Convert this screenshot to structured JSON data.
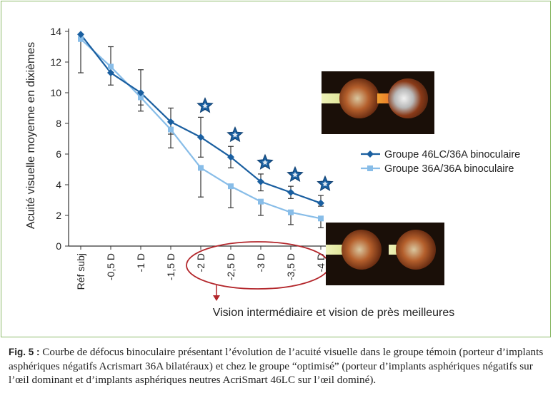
{
  "chart_data": {
    "type": "line",
    "ylabel": "Acuité visuelle moyenne en dixièmes",
    "xlabel": "",
    "ylim": [
      0,
      14
    ],
    "yticks": [
      0,
      2,
      4,
      6,
      8,
      10,
      12,
      14
    ],
    "categories": [
      "Réf subj",
      "-0,5 D",
      "-1 D",
      "-1,5 D",
      "-2 D",
      "-2,5 D",
      "-3 D",
      "-3,5 D",
      "-4 D"
    ],
    "grid": false,
    "legend_position": "right",
    "series": [
      {
        "name": "Groupe 46LC/36A binoculaire",
        "color": "#1a5fa0",
        "marker": "diamond",
        "values": [
          13.8,
          11.3,
          10.0,
          8.1,
          7.1,
          5.8,
          4.2,
          3.5,
          2.8
        ],
        "error_low": [
          11.3,
          10.5,
          9.2,
          7.3,
          5.8,
          5.1,
          3.6,
          3.1,
          2.6
        ],
        "error_high": [
          null,
          13.0,
          11.5,
          9.0,
          8.4,
          6.5,
          4.7,
          3.9,
          3.3
        ]
      },
      {
        "name": "Groupe 36A/36A binoculaire",
        "color": "#88bde8",
        "marker": "square",
        "values": [
          13.5,
          11.7,
          9.7,
          7.6,
          5.1,
          3.9,
          2.9,
          2.2,
          1.8
        ],
        "error_low": [
          null,
          null,
          8.8,
          6.4,
          3.2,
          2.5,
          2.0,
          1.4,
          1.2
        ],
        "error_high": [
          null,
          null,
          null,
          null,
          null,
          null,
          null,
          null,
          null
        ]
      }
    ],
    "star_categories": [
      "-2 D",
      "-2,5 D",
      "-3 D",
      "-3,5 D",
      "-4 D"
    ],
    "star_color": "#1a5fa0",
    "annotation": "Vision intermédiaire et vision de près meilleures",
    "annotation_color": "#b3262b"
  },
  "caption": {
    "fig_label": "Fig. 5 :",
    "text": "Courbe de défocus binoculaire présentant l’évolution de l’acuité visuelle dans le groupe témoin (porteur d’implants asphériques négatifs Acrismart 36A bilatéraux) et chez le groupe “optimisé” (porteur d’implants asphériques négatifs sur l’œil dominant et d’implants asphériques neutres AcriSmart 46LC sur l’œil dominé)."
  },
  "icons": {
    "top_photo": "eye-optics-comparison-photo",
    "bottom_photo": "eye-optics-comparison-photo"
  }
}
